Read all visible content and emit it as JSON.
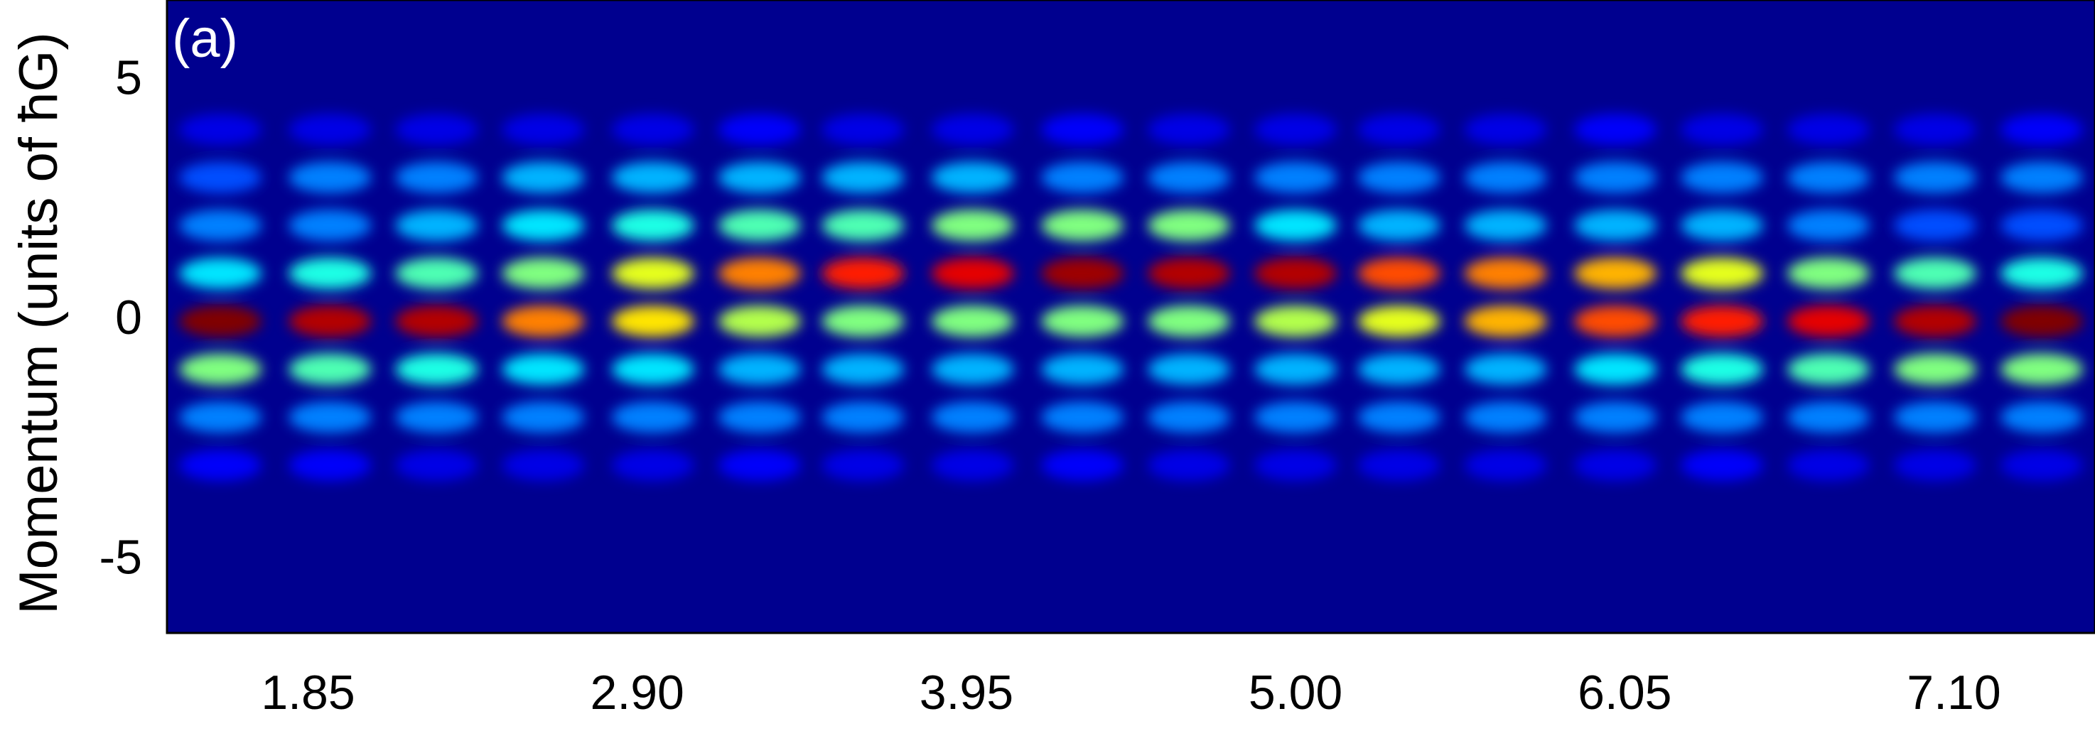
{
  "chart_data": {
    "type": "heatmap",
    "panel_label": "(a)",
    "ylabel": "Momentum (units of ħG)",
    "colormap": "jet",
    "x": [
      1.57,
      1.92,
      2.26,
      2.6,
      2.95,
      3.29,
      3.62,
      3.97,
      4.32,
      4.66,
      5.0,
      5.33,
      5.67,
      6.02,
      6.36,
      6.7,
      7.04,
      7.38
    ],
    "y": [
      4,
      3,
      2,
      1,
      0,
      -1,
      -2,
      -3
    ],
    "z": [
      [
        0.1,
        0.1,
        0.1,
        0.1,
        0.1,
        0.12,
        0.1,
        0.1,
        0.12,
        0.1,
        0.1,
        0.1,
        0.1,
        0.12,
        0.1,
        0.1,
        0.1,
        0.12
      ],
      [
        0.2,
        0.25,
        0.25,
        0.3,
        0.3,
        0.3,
        0.3,
        0.3,
        0.25,
        0.25,
        0.25,
        0.25,
        0.25,
        0.25,
        0.25,
        0.25,
        0.25,
        0.25
      ],
      [
        0.25,
        0.25,
        0.3,
        0.35,
        0.4,
        0.45,
        0.45,
        0.5,
        0.5,
        0.5,
        0.35,
        0.3,
        0.3,
        0.3,
        0.3,
        0.25,
        0.2,
        0.2
      ],
      [
        0.35,
        0.4,
        0.45,
        0.5,
        0.6,
        0.75,
        0.85,
        0.9,
        0.97,
        0.95,
        0.95,
        0.8,
        0.75,
        0.7,
        0.6,
        0.5,
        0.45,
        0.4
      ],
      [
        1.0,
        0.95,
        0.95,
        0.75,
        0.65,
        0.55,
        0.5,
        0.5,
        0.5,
        0.5,
        0.55,
        0.6,
        0.7,
        0.8,
        0.85,
        0.9,
        0.95,
        1.0
      ],
      [
        0.5,
        0.45,
        0.4,
        0.35,
        0.35,
        0.3,
        0.3,
        0.3,
        0.3,
        0.3,
        0.3,
        0.3,
        0.3,
        0.35,
        0.4,
        0.45,
        0.5,
        0.5
      ],
      [
        0.25,
        0.25,
        0.25,
        0.25,
        0.25,
        0.25,
        0.25,
        0.25,
        0.25,
        0.25,
        0.25,
        0.25,
        0.25,
        0.25,
        0.25,
        0.25,
        0.25,
        0.25
      ],
      [
        0.12,
        0.12,
        0.1,
        0.1,
        0.1,
        0.12,
        0.1,
        0.1,
        0.12,
        0.1,
        0.1,
        0.1,
        0.1,
        0.1,
        0.12,
        0.1,
        0.1,
        0.1
      ]
    ],
    "xlim": [
      1.4,
      7.55
    ],
    "ylim": [
      -6.5,
      6.7
    ],
    "xticks": [
      1.85,
      {
        "value": 2.9,
        "label": "2.90"
      },
      3.95,
      {
        "value": 5.0,
        "label": "5.00"
      },
      6.05,
      {
        "value": 7.1,
        "label": "7.10"
      }
    ],
    "yticks": [
      5,
      0,
      -5
    ]
  }
}
